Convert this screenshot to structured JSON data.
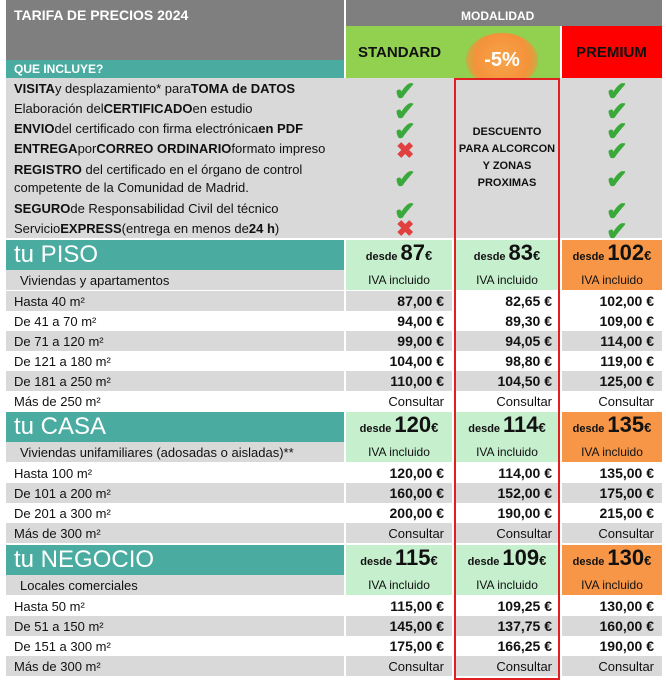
{
  "header": {
    "title": "TARIFA DE PRECIOS 2024",
    "modalidad": "MODALIDAD",
    "standard": "STANDARD",
    "premium": "PREMIUM",
    "discount_badge": "-5%"
  },
  "includes": {
    "label": "QUE INCLUYE?",
    "descuento_text": "DESCUENTO PARA ALCORCON Y ZONAS PROXIMAS",
    "items": [
      {
        "b1": "VISITA",
        "t1": " y desplazamiento* para ",
        "b2": "TOMA de DATOS",
        "t2": "",
        "standard": "check",
        "premium": "check"
      },
      {
        "b1": "",
        "t1": "Elaboración del ",
        "b2": "CERTIFICADO",
        "t2": " en estudio",
        "standard": "check",
        "premium": "check"
      },
      {
        "b1": "ENVIO",
        "t1": " del certificado con firma electrónica ",
        "b2": "en PDF",
        "t2": "",
        "standard": "check",
        "premium": "check"
      },
      {
        "b1": "ENTREGA",
        "t1": " por ",
        "b2": "CORREO ORDINARIO",
        "t2": " formato impreso",
        "standard": "cross",
        "premium": "check"
      },
      {
        "b1": "REGISTRO",
        "t1": " del certificado en el órgano de control",
        "b2": "",
        "t2": "competente de la Comunidad de Madrid.",
        "standard": "check",
        "premium": "check"
      },
      {
        "b1": "SEGURO",
        "t1": " de Responsabilidad Civil del técnico",
        "b2": "",
        "t2": "",
        "standard": "check",
        "premium": "check"
      },
      {
        "b1": "",
        "t1": "Servicio ",
        "b2": "EXPRESS",
        "t2": " (entrega en menos de ",
        "b3": "24 h",
        "t3": ")",
        "standard": "cross",
        "premium": "check"
      }
    ]
  },
  "sections": [
    {
      "title": "tu PISO",
      "subtitle": "Viviendas y apartamentos",
      "desde": "desde",
      "from_prices": {
        "standard": "87",
        "alcorcon": "83",
        "premium": "102"
      },
      "currency": "€",
      "iva": "IVA incluido",
      "rows": [
        {
          "label": "Hasta 40 m²",
          "standard": "87,00 €",
          "alcorcon": "82,65 €",
          "premium": "102,00 €"
        },
        {
          "label": "De 41 a 70 m²",
          "standard": "94,00 €",
          "alcorcon": "89,30 €",
          "premium": "109,00 €"
        },
        {
          "label": "De 71 a 120 m²",
          "standard": "99,00 €",
          "alcorcon": "94,05 €",
          "premium": "114,00 €"
        },
        {
          "label": "De 121 a 180 m²",
          "standard": "104,00 €",
          "alcorcon": "98,80 €",
          "premium": "119,00 €"
        },
        {
          "label": "De 181 a 250 m²",
          "standard": "110,00 €",
          "alcorcon": "104,50 €",
          "premium": "125,00 €"
        },
        {
          "label": "Más de 250 m²",
          "standard": "Consultar",
          "alcorcon": "Consultar",
          "premium": "Consultar"
        }
      ]
    },
    {
      "title": "tu CASA",
      "subtitle": "Viviendas unifamiliares (adosadas o aisladas)**",
      "desde": "desde",
      "from_prices": {
        "standard": "120",
        "alcorcon": "114",
        "premium": "135"
      },
      "currency": "€",
      "iva": "IVA incluido",
      "rows": [
        {
          "label": "Hasta 100 m²",
          "standard": "120,00 €",
          "alcorcon": "114,00 €",
          "premium": "135,00 €"
        },
        {
          "label": "De 101 a 200 m²",
          "standard": "160,00 €",
          "alcorcon": "152,00 €",
          "premium": "175,00 €"
        },
        {
          "label": "De 201 a 300 m²",
          "standard": "200,00 €",
          "alcorcon": "190,00 €",
          "premium": "215,00 €"
        },
        {
          "label": "Más de 300 m²",
          "standard": "Consultar",
          "alcorcon": "Consultar",
          "premium": "Consultar"
        }
      ]
    },
    {
      "title": "tu NEGOCIO",
      "subtitle": "Locales comerciales",
      "desde": "desde",
      "from_prices": {
        "standard": "115",
        "alcorcon": "109",
        "premium": "130"
      },
      "currency": "€",
      "iva": "IVA incluido",
      "rows": [
        {
          "label": "Hasta 50 m²",
          "standard": "115,00 €",
          "alcorcon": "109,25 €",
          "premium": "130,00 €"
        },
        {
          "label": "De 51 a 150 m²",
          "standard": "145,00 €",
          "alcorcon": "137,75 €",
          "premium": "160,00 €"
        },
        {
          "label": "De 151 a 300 m²",
          "standard": "175,00 €",
          "alcorcon": "166,25 €",
          "premium": "190,00 €"
        },
        {
          "label": "Más de 300 m²",
          "standard": "Consultar",
          "alcorcon": "Consultar",
          "premium": "Consultar"
        }
      ]
    }
  ],
  "colors": {
    "standard_header": "#92d050",
    "premium_header": "#ff0000",
    "section_header": "#4aaca0",
    "premium_price": "#f79646",
    "light_green": "#c6efce",
    "discount_border": "#e02020"
  }
}
